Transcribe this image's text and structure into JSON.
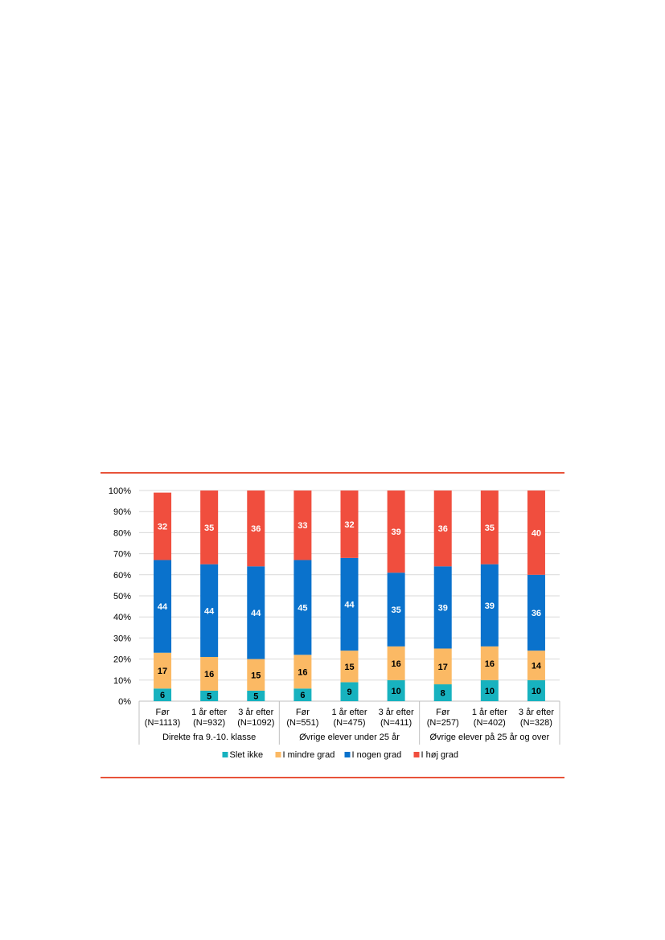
{
  "chart_data": {
    "type": "bar",
    "stacked": true,
    "orientation": "vertical",
    "ylim": [
      0,
      100
    ],
    "y_ticks": [
      "0%",
      "10%",
      "20%",
      "30%",
      "40%",
      "50%",
      "60%",
      "70%",
      "80%",
      "90%",
      "100%"
    ],
    "grid": true,
    "legend_position": "bottom",
    "categories": [
      [
        "Før",
        "(N=1113)"
      ],
      [
        "1 år efter",
        "(N=932)"
      ],
      [
        "3 år efter",
        "(N=1092)"
      ],
      [
        "Før",
        "(N=551)"
      ],
      [
        "1 år efter",
        "(N=475)"
      ],
      [
        "3 år efter",
        "(N=411)"
      ],
      [
        "Før",
        "(N=257)"
      ],
      [
        "1 år efter",
        "(N=402)"
      ],
      [
        "3 år efter",
        "(N=328)"
      ]
    ],
    "groups": [
      {
        "label": "Direkte fra 9.-10. klasse",
        "start": 0,
        "count": 3
      },
      {
        "label": "Øvrige elever under 25 år",
        "start": 3,
        "count": 3
      },
      {
        "label": "Øvrige elever på 25 år og over",
        "start": 6,
        "count": 3
      }
    ],
    "series": [
      {
        "name": "Slet ikke",
        "color": "#17b2bf",
        "label_color": "#000000",
        "values": [
          6,
          5,
          5,
          6,
          9,
          10,
          8,
          10,
          10
        ]
      },
      {
        "name": "I mindre grad",
        "color": "#fbb964",
        "label_color": "#000000",
        "values": [
          17,
          16,
          15,
          16,
          15,
          16,
          17,
          16,
          14
        ]
      },
      {
        "name": "I nogen grad",
        "color": "#0a72cc",
        "label_color": "#ffffff",
        "values": [
          44,
          44,
          44,
          45,
          44,
          35,
          39,
          39,
          36
        ]
      },
      {
        "name": "I høj grad",
        "color": "#f04e3e",
        "label_color": "#ffffff",
        "values": [
          32,
          35,
          36,
          33,
          32,
          39,
          36,
          35,
          40
        ]
      }
    ]
  }
}
